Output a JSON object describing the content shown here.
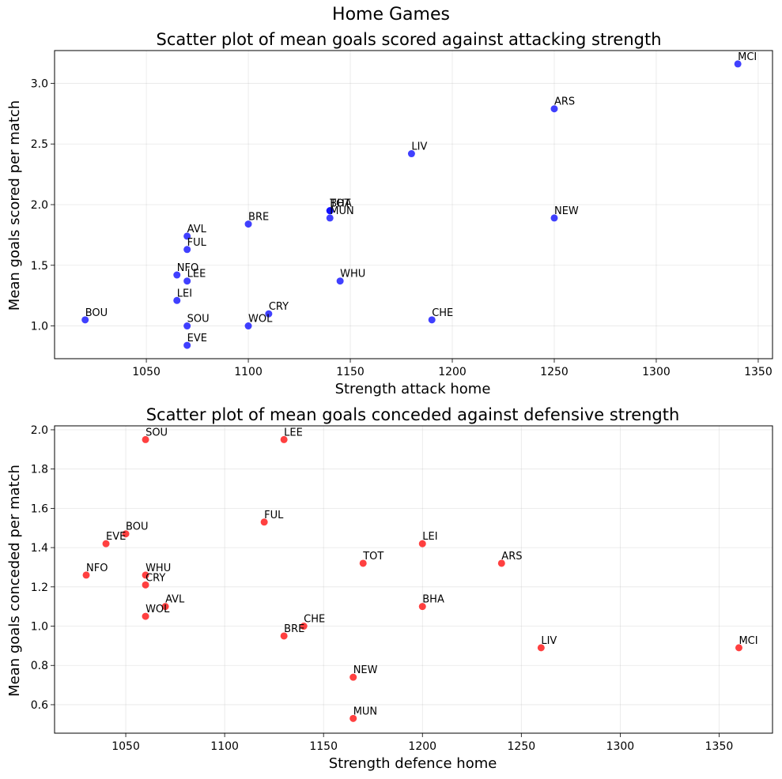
{
  "figure": {
    "suptitle": "Home Games"
  },
  "chart_data": [
    {
      "type": "scatter",
      "title": "Scatter plot of mean goals scored against attacking strength",
      "xlabel": "Strength attack home",
      "ylabel": "Mean goals scored per match",
      "xlim": [
        1005,
        1357
      ],
      "ylim": [
        0.73,
        3.27
      ],
      "xticks": [
        1050,
        1100,
        1150,
        1200,
        1250,
        1300,
        1350
      ],
      "yticks": [
        1.0,
        1.5,
        2.0,
        2.5,
        3.0
      ],
      "ytick_format": 1,
      "grid": true,
      "color": "#0000ff",
      "points": [
        {
          "label": "MCI",
          "x": 1340,
          "y": 3.16
        },
        {
          "label": "ARS",
          "x": 1250,
          "y": 2.79
        },
        {
          "label": "LIV",
          "x": 1180,
          "y": 2.42
        },
        {
          "label": "TOT",
          "x": 1140,
          "y": 1.95
        },
        {
          "label": "BHA",
          "x": 1140,
          "y": 1.95
        },
        {
          "label": "MUN",
          "x": 1140,
          "y": 1.89
        },
        {
          "label": "NEW",
          "x": 1250,
          "y": 1.89
        },
        {
          "label": "BRE",
          "x": 1100,
          "y": 1.84
        },
        {
          "label": "AVL",
          "x": 1070,
          "y": 1.74
        },
        {
          "label": "FUL",
          "x": 1070,
          "y": 1.63
        },
        {
          "label": "NFO",
          "x": 1065,
          "y": 1.42
        },
        {
          "label": "LEE",
          "x": 1070,
          "y": 1.37
        },
        {
          "label": "WHU",
          "x": 1145,
          "y": 1.37
        },
        {
          "label": "LEI",
          "x": 1065,
          "y": 1.21
        },
        {
          "label": "CRY",
          "x": 1110,
          "y": 1.1
        },
        {
          "label": "BOU",
          "x": 1020,
          "y": 1.05
        },
        {
          "label": "CHE",
          "x": 1190,
          "y": 1.05
        },
        {
          "label": "SOU",
          "x": 1070,
          "y": 1.0
        },
        {
          "label": "WOL",
          "x": 1100,
          "y": 1.0
        },
        {
          "label": "EVE",
          "x": 1070,
          "y": 0.84
        }
      ]
    },
    {
      "type": "scatter",
      "title": "Scatter plot of mean goals conceded against defensive strength",
      "xlabel": "Strength defence home",
      "ylabel": "Mean goals conceded per match",
      "xlim": [
        1014,
        1377
      ],
      "ylim": [
        0.455,
        2.02
      ],
      "xticks": [
        1050,
        1100,
        1150,
        1200,
        1250,
        1300,
        1350
      ],
      "yticks": [
        0.6,
        0.8,
        1.0,
        1.2,
        1.4,
        1.6,
        1.8,
        2.0
      ],
      "ytick_format": 1,
      "grid": true,
      "color": "#ff0000",
      "points": [
        {
          "label": "SOU",
          "x": 1060,
          "y": 1.95
        },
        {
          "label": "LEE",
          "x": 1130,
          "y": 1.95
        },
        {
          "label": "FUL",
          "x": 1120,
          "y": 1.53
        },
        {
          "label": "BOU",
          "x": 1050,
          "y": 1.47
        },
        {
          "label": "EVE",
          "x": 1040,
          "y": 1.42
        },
        {
          "label": "LEI",
          "x": 1200,
          "y": 1.42
        },
        {
          "label": "TOT",
          "x": 1170,
          "y": 1.32
        },
        {
          "label": "ARS",
          "x": 1240,
          "y": 1.32
        },
        {
          "label": "NFO",
          "x": 1030,
          "y": 1.26
        },
        {
          "label": "WHU",
          "x": 1060,
          "y": 1.26
        },
        {
          "label": "CRY",
          "x": 1060,
          "y": 1.21
        },
        {
          "label": "AVL",
          "x": 1070,
          "y": 1.1
        },
        {
          "label": "BHA",
          "x": 1200,
          "y": 1.1
        },
        {
          "label": "WOL",
          "x": 1060,
          "y": 1.05
        },
        {
          "label": "CHE",
          "x": 1140,
          "y": 1.0
        },
        {
          "label": "BRE",
          "x": 1130,
          "y": 0.95
        },
        {
          "label": "LIV",
          "x": 1260,
          "y": 0.89
        },
        {
          "label": "MCI",
          "x": 1360,
          "y": 0.89
        },
        {
          "label": "NEW",
          "x": 1165,
          "y": 0.74
        },
        {
          "label": "MUN",
          "x": 1165,
          "y": 0.53
        }
      ]
    }
  ]
}
